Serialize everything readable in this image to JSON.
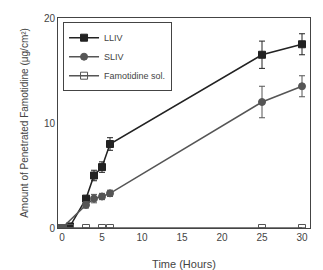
{
  "chart_data": {
    "type": "line",
    "xlabel": "Time (Hours)",
    "ylabel": "Amount of Penetrated Famotidine (μg/cm²)",
    "xlim": [
      -0.5,
      31
    ],
    "ylim": [
      0,
      20
    ],
    "xticks": [
      0,
      5,
      10,
      15,
      20,
      25,
      30
    ],
    "yticks": [
      0,
      10,
      20
    ],
    "grid": false,
    "legend": "upper left",
    "series": [
      {
        "name": "LLIV",
        "x": [
          0,
          1,
          3,
          4,
          5,
          6,
          25,
          30
        ],
        "values": [
          0,
          0.15,
          2.8,
          5.0,
          5.8,
          8.0,
          16.5,
          17.5
        ],
        "yerr": [
          0,
          0,
          0.0,
          0.5,
          0.5,
          0.6,
          1.3,
          1.0
        ],
        "color": "#222222",
        "marker": "square"
      },
      {
        "name": "SLIV",
        "x": [
          0,
          3,
          4,
          5,
          6,
          25,
          30
        ],
        "values": [
          0,
          2.2,
          2.8,
          3.0,
          3.3,
          12.0,
          13.5
        ],
        "yerr": [
          0,
          0.3,
          0.4,
          0.3,
          0.3,
          1.5,
          1.0
        ],
        "color": "#555555",
        "marker": "circle"
      },
      {
        "name": "Famotidine sol.",
        "x": [
          0,
          1,
          3,
          5,
          6,
          25,
          30
        ],
        "values": [
          0,
          0.0,
          0.0,
          0.0,
          0.0,
          0.0,
          0.0
        ],
        "yerr": [
          0,
          0,
          0.0,
          0.0,
          0.0,
          0.0,
          0.0
        ],
        "color": "#555555",
        "marker": "square-open"
      }
    ]
  }
}
